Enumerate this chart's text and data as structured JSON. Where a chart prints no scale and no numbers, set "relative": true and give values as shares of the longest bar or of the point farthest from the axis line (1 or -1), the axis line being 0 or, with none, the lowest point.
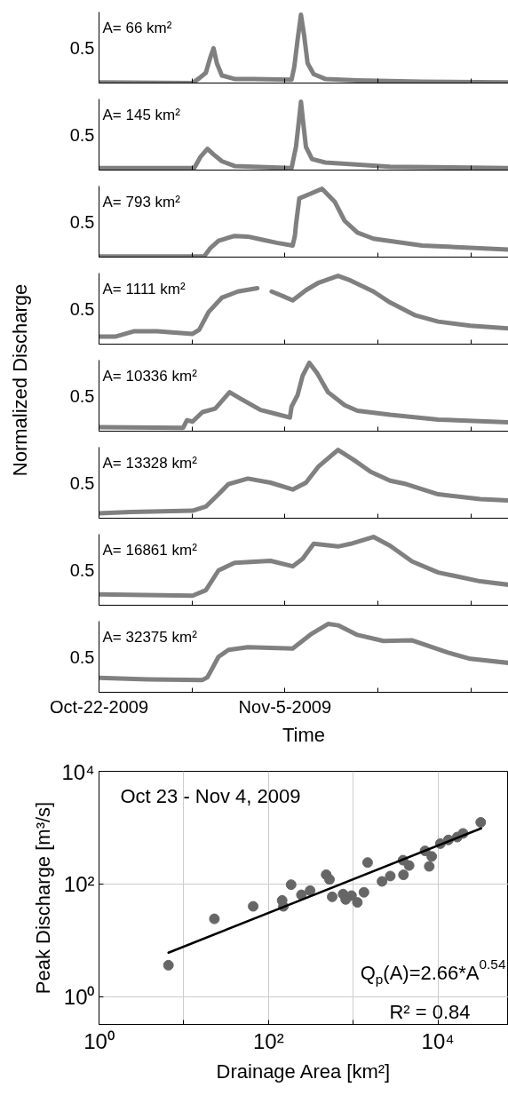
{
  "chart_data": [
    {
      "type": "line",
      "relative": true,
      "annotations": [
        "A= 66 km²",
        "0.5"
      ],
      "xlim": [
        "2009-10-22",
        "2009-11-21T20:00"
      ],
      "xticks": [
        {
          "value": "2009-10-22",
          "label": null
        },
        {
          "value": "2009-10-29",
          "label": null
        },
        {
          "value": "2009-11-05",
          "label": null
        },
        {
          "value": "2009-11-12",
          "label": null
        },
        {
          "value": "2009-11-19",
          "label": null
        }
      ],
      "tick_labels": "y",
      "series": [
        {
          "color": "#808080",
          "x": [
            "2009-10-22T00:00",
            "2009-10-29T01:00",
            "2009-10-29T13:00",
            "2009-10-30T01:00",
            "2009-10-30T09:00",
            "2009-10-30T15:00",
            "2009-10-30T21:00",
            "2009-10-31T06:00",
            "2009-11-01T05:00",
            "2009-11-02T16:00",
            "2009-11-05T12:00",
            "2009-11-05T17:00",
            "2009-11-05T23:00",
            "2009-11-06T05:00",
            "2009-11-06T11:00",
            "2009-11-06T17:00",
            "2009-11-07T04:00",
            "2009-11-08T01:00",
            "2009-11-10T11:00",
            "2009-11-15T08:00",
            "2009-11-21T20:00"
          ],
          "values": [
            0.01,
            0,
            0.07,
            0.15,
            0.37,
            0.51,
            0.29,
            0.11,
            0.06,
            0.06,
            0.05,
            0.24,
            0.64,
            1,
            0.68,
            0.29,
            0.13,
            0.06,
            0.04,
            0.02,
            0.01
          ]
        }
      ]
    },
    {
      "type": "line",
      "relative": true,
      "annotations": [
        "A= 145 km²",
        "0.5"
      ],
      "xlim": [
        "2009-10-22",
        "2009-11-21T20:00"
      ],
      "xticks": [
        {
          "value": "2009-10-22",
          "label": null
        },
        {
          "value": "2009-10-29",
          "label": null
        },
        {
          "value": "2009-11-05",
          "label": null
        },
        {
          "value": "2009-11-12",
          "label": null
        },
        {
          "value": "2009-11-19",
          "label": null
        }
      ],
      "tick_labels": "y",
      "series": [
        {
          "color": "#808080",
          "x": [
            "2009-10-22T00:00",
            "2009-10-29T04:00",
            "2009-10-29T16:00",
            "2009-10-30T04:00",
            "2009-10-30T15:00",
            "2009-10-31T06:00",
            "2009-11-01T05:00",
            "2009-11-05T12:00",
            "2009-11-05T20:00",
            "2009-11-06T01:00",
            "2009-11-06T05:00",
            "2009-11-06T09:00",
            "2009-11-06T14:00",
            "2009-11-07T01:00",
            "2009-11-08T01:00",
            "2009-11-12T22:00",
            "2009-11-21T20:00"
          ],
          "values": [
            0.03,
            0.03,
            0.2,
            0.31,
            0.23,
            0.13,
            0.06,
            0.03,
            0.34,
            0.7,
            1,
            0.7,
            0.34,
            0.16,
            0.11,
            0.05,
            0.03
          ]
        }
      ]
    },
    {
      "type": "line",
      "relative": true,
      "annotations": [
        "A= 793 km²",
        "0.5"
      ],
      "xlim": [
        "2009-10-22",
        "2009-11-21T20:00"
      ],
      "xticks": [
        {
          "value": "2009-10-22",
          "label": null
        },
        {
          "value": "2009-10-29",
          "label": null
        },
        {
          "value": "2009-11-05",
          "label": null
        },
        {
          "value": "2009-11-12",
          "label": null
        },
        {
          "value": "2009-11-19",
          "label": null
        }
      ],
      "tick_labels": "y",
      "series": [
        {
          "color": "#808080",
          "x": [
            "2009-10-22T00:00",
            "2009-10-29T22:00",
            "2009-10-30T09:00",
            "2009-10-31T00:00",
            "2009-11-01T05:00",
            "2009-11-02T05:00",
            "2009-11-03T04:00",
            "2009-11-04T09:00",
            "2009-11-05T14:00",
            "2009-11-05T18:00",
            "2009-11-05T20:00",
            "2009-11-06T02:00",
            "2009-11-06T17:00",
            "2009-11-07T19:00",
            "2009-11-08T18:00",
            "2009-11-09T12:00",
            "2009-11-10T11:00",
            "2009-11-11T16:00",
            "2009-11-15T08:00",
            "2009-11-21T20:00"
          ],
          "values": [
            0.01,
            0.01,
            0.13,
            0.24,
            0.31,
            0.3,
            0.26,
            0.21,
            0.17,
            0.31,
            0.48,
            0.86,
            0.91,
            1,
            0.81,
            0.53,
            0.36,
            0.27,
            0.17,
            0.11
          ]
        }
      ]
    },
    {
      "type": "line",
      "relative": true,
      "annotations": [
        "A= 1111 km²",
        "0.5"
      ],
      "ylabel": "Normalized Discharge",
      "xlim": [
        "2009-10-22",
        "2009-11-21T20:00"
      ],
      "xticks": [
        {
          "value": "2009-10-22",
          "label": null
        },
        {
          "value": "2009-10-29",
          "label": null
        },
        {
          "value": "2009-11-05",
          "label": null
        },
        {
          "value": "2009-11-12",
          "label": null
        },
        {
          "value": "2009-11-19",
          "label": null
        }
      ],
      "tick_labels": "y",
      "series": [
        {
          "color": "#808080",
          "x": [
            "2009-10-22T00:00",
            "2009-10-23T05:00",
            "2009-10-24T16:00",
            "2009-10-26T09:00",
            "2009-10-29T01:00",
            "2009-10-29T13:00",
            "2009-10-30T06:00",
            "2009-10-31T06:00",
            "2009-11-01T11:00",
            "2009-11-02T22:00",
            "2009-11-03T12:00",
            "2009-11-04T00:00",
            "2009-11-04T21:00",
            "2009-11-05T14:00",
            "2009-11-06T14:00",
            "2009-11-07T13:00",
            "2009-11-09T00:00",
            "2009-11-09T23:00",
            "2009-11-11T16:00",
            "2009-11-12T22:00",
            "2009-11-14T20:00",
            "2009-11-16T13:00",
            "2009-11-18T23:00",
            "2009-11-21T20:00"
          ],
          "values": [
            0.11,
            0.11,
            0.19,
            0.19,
            0.15,
            0.21,
            0.47,
            0.68,
            0.77,
            0.82,
            null,
            0.77,
            0.7,
            0.64,
            0.79,
            0.9,
            1.0,
            0.93,
            0.77,
            0.61,
            0.42,
            0.33,
            0.27,
            0.23
          ]
        }
      ]
    },
    {
      "type": "line",
      "relative": true,
      "annotations": [
        "A= 10336 km²",
        "0.5"
      ],
      "xlim": [
        "2009-10-22",
        "2009-11-21T20:00"
      ],
      "xticks": [
        {
          "value": "2009-10-22",
          "label": null
        },
        {
          "value": "2009-10-29",
          "label": null
        },
        {
          "value": "2009-11-05",
          "label": null
        },
        {
          "value": "2009-11-12",
          "label": null
        },
        {
          "value": "2009-11-19",
          "label": null
        }
      ],
      "tick_labels": "y",
      "series": [
        {
          "color": "#808080",
          "x": [
            "2009-10-22T00:00",
            "2009-10-28T08:00",
            "2009-10-28T15:00",
            "2009-10-29T01:00",
            "2009-10-29T19:00",
            "2009-10-30T18:00",
            "2009-10-31T20:00",
            "2009-11-01T17:00",
            "2009-11-03T04:00",
            "2009-11-04T09:00",
            "2009-11-05T09:00",
            "2009-11-05T12:00",
            "2009-11-05T23:00",
            "2009-11-06T08:00",
            "2009-11-06T20:00",
            "2009-11-07T10:00",
            "2009-11-08T06:00",
            "2009-11-09T12:00",
            "2009-11-10T11:00",
            "2009-11-12T22:00",
            "2009-11-16T13:00",
            "2009-11-21T20:00"
          ],
          "values": [
            0.06,
            0.05,
            0.16,
            0.14,
            0.28,
            0.33,
            0.57,
            0.47,
            0.31,
            0.25,
            0.2,
            0.36,
            0.53,
            0.81,
            1,
            0.85,
            0.57,
            0.38,
            0.3,
            0.24,
            0.17,
            0.13
          ]
        }
      ]
    },
    {
      "type": "line",
      "relative": true,
      "annotations": [
        "A= 13328 km²",
        "0.5"
      ],
      "xlim": [
        "2009-10-22",
        "2009-11-21T20:00"
      ],
      "xticks": [
        {
          "value": "2009-10-22",
          "label": null
        },
        {
          "value": "2009-10-29",
          "label": null
        },
        {
          "value": "2009-11-05",
          "label": null
        },
        {
          "value": "2009-11-12",
          "label": null
        },
        {
          "value": "2009-11-19",
          "label": null
        }
      ],
      "tick_labels": "y",
      "series": [
        {
          "color": "#808080",
          "x": [
            "2009-10-22T00:00",
            "2009-10-24T10:00",
            "2009-10-29T01:00",
            "2009-10-30T01:00",
            "2009-10-31T00:00",
            "2009-10-31T18:00",
            "2009-11-02T05:00",
            "2009-11-03T22:00",
            "2009-11-05T14:00",
            "2009-11-06T14:00",
            "2009-11-07T13:00",
            "2009-11-09T00:00",
            "2009-11-10T05:00",
            "2009-11-11T11:00",
            "2009-11-12T22:00",
            "2009-11-14T03:00",
            "2009-11-16T13:00",
            "2009-11-19T17:00",
            "2009-11-21T20:00"
          ],
          "values": [
            0.07,
            0.09,
            0.11,
            0.17,
            0.35,
            0.5,
            0.58,
            0.52,
            0.42,
            0.52,
            0.76,
            1,
            0.85,
            0.68,
            0.55,
            0.5,
            0.35,
            0.28,
            0.26
          ]
        }
      ]
    },
    {
      "type": "line",
      "relative": true,
      "annotations": [
        "A= 16861 km²",
        "0.5"
      ],
      "xlim": [
        "2009-10-22",
        "2009-11-21T20:00"
      ],
      "xticks": [
        {
          "value": "2009-10-22",
          "label": null
        },
        {
          "value": "2009-10-29",
          "label": null
        },
        {
          "value": "2009-11-05",
          "label": null
        },
        {
          "value": "2009-11-12",
          "label": null
        },
        {
          "value": "2009-11-19",
          "label": null
        }
      ],
      "tick_labels": "y",
      "series": [
        {
          "color": "#808080",
          "x": [
            "2009-10-22T00:00",
            "2009-10-29T01:00",
            "2009-10-30T01:00",
            "2009-10-31T00:00",
            "2009-11-01T05:00",
            "2009-11-03T22:00",
            "2009-11-05T14:00",
            "2009-11-06T08:00",
            "2009-11-07T04:00",
            "2009-11-09T00:00",
            "2009-11-09T23:00",
            "2009-11-11T16:00",
            "2009-11-12T22:00",
            "2009-11-14T14:00",
            "2009-11-16T13:00",
            "2009-11-19T17:00",
            "2009-11-21T20:00"
          ],
          "values": [
            0.16,
            0.14,
            0.22,
            0.51,
            0.62,
            0.65,
            0.57,
            0.68,
            0.9,
            0.86,
            0.9,
            1,
            0.87,
            0.64,
            0.48,
            0.35,
            0.3
          ]
        }
      ]
    },
    {
      "type": "line",
      "relative": true,
      "annotations": [
        "A= 32375 km²",
        "0.5"
      ],
      "xlabel": "Time",
      "xlim": [
        "2009-10-22",
        "2009-11-21T20:00"
      ],
      "xticks": [
        {
          "value": "2009-10-22",
          "label": "Oct-22-2009"
        },
        {
          "value": "2009-10-29",
          "label": null
        },
        {
          "value": "2009-11-05",
          "label": "Nov-5-2009"
        },
        {
          "value": "2009-11-12",
          "label": null
        },
        {
          "value": "2009-11-19",
          "label": null
        }
      ],
      "series": [
        {
          "color": "#808080",
          "x": [
            "2009-10-22T00:00",
            "2009-10-25T16:00",
            "2009-10-29T19:00",
            "2009-10-30T04:00",
            "2009-10-31T00:00",
            "2009-10-31T18:00",
            "2009-11-02T05:00",
            "2009-11-05T14:00",
            "2009-11-07T01:00",
            "2009-11-08T06:00",
            "2009-11-09T00:00",
            "2009-11-10T11:00",
            "2009-11-12T10:00",
            "2009-11-14T14:00",
            "2009-11-15T08:00",
            "2009-11-17T07:00",
            "2009-11-18T23:00",
            "2009-11-21T20:00"
          ],
          "values": [
            0.21,
            0.19,
            0.18,
            0.22,
            0.52,
            0.62,
            0.66,
            0.64,
            0.86,
            1,
            0.98,
            0.84,
            0.75,
            0.76,
            0.71,
            0.58,
            0.49,
            0.43
          ]
        }
      ]
    },
    {
      "type": "scatter",
      "xlabel": "Drainage Area [km²]",
      "ylabel": "Peak Discharge [m³/s]",
      "annotations": [
        "Oct 23 - Nov 4, 2009",
        "Q$_{p}$(A)=2.66*A$^{0.54}$",
        "R² = 0.84"
      ],
      "log": "xy",
      "grid": true,
      "xlim": [
        1,
        68000
      ],
      "ylim": [
        0.32,
        10000
      ],
      "xticks": [
        {
          "value": 1,
          "label": "10⁰"
        },
        {
          "value": 10,
          "label": null
        },
        {
          "value": 100,
          "label": "10²"
        },
        {
          "value": 1000,
          "label": null
        },
        {
          "value": 10000,
          "label": "10⁴"
        }
      ],
      "yticks": [
        {
          "value": 1,
          "label": "10⁰"
        },
        {
          "value": 100,
          "label": "10²"
        },
        {
          "value": 10000,
          "label": "10⁴"
        }
      ],
      "series": [
        {
          "color": "#666666",
          "marker": "circle",
          "x": [
            6.6,
            23,
            66,
            145,
            150,
            185,
            245,
            310,
            480,
            525,
            565,
            760,
            815,
            955,
            1120,
            1340,
            1480,
            2190,
            2740,
            3870,
            3920,
            4570,
            7050,
            7900,
            8450,
            10700,
            13300,
            16900,
            19800,
            32000
          ],
          "values": [
            3.6,
            24,
            40,
            51,
            40,
            97,
            64,
            76,
            146,
            120,
            59,
            66,
            53,
            62,
            47,
            71,
            240,
            111,
            138,
            264,
            145,
            212,
            386,
            205,
            308,
            520,
            605,
            680,
            790,
            1240
          ]
        },
        {
          "type": "line",
          "color": "#000000",
          "x": [
            6.6,
            32375
          ],
          "values": [
            6.0,
            970
          ]
        }
      ]
    }
  ]
}
